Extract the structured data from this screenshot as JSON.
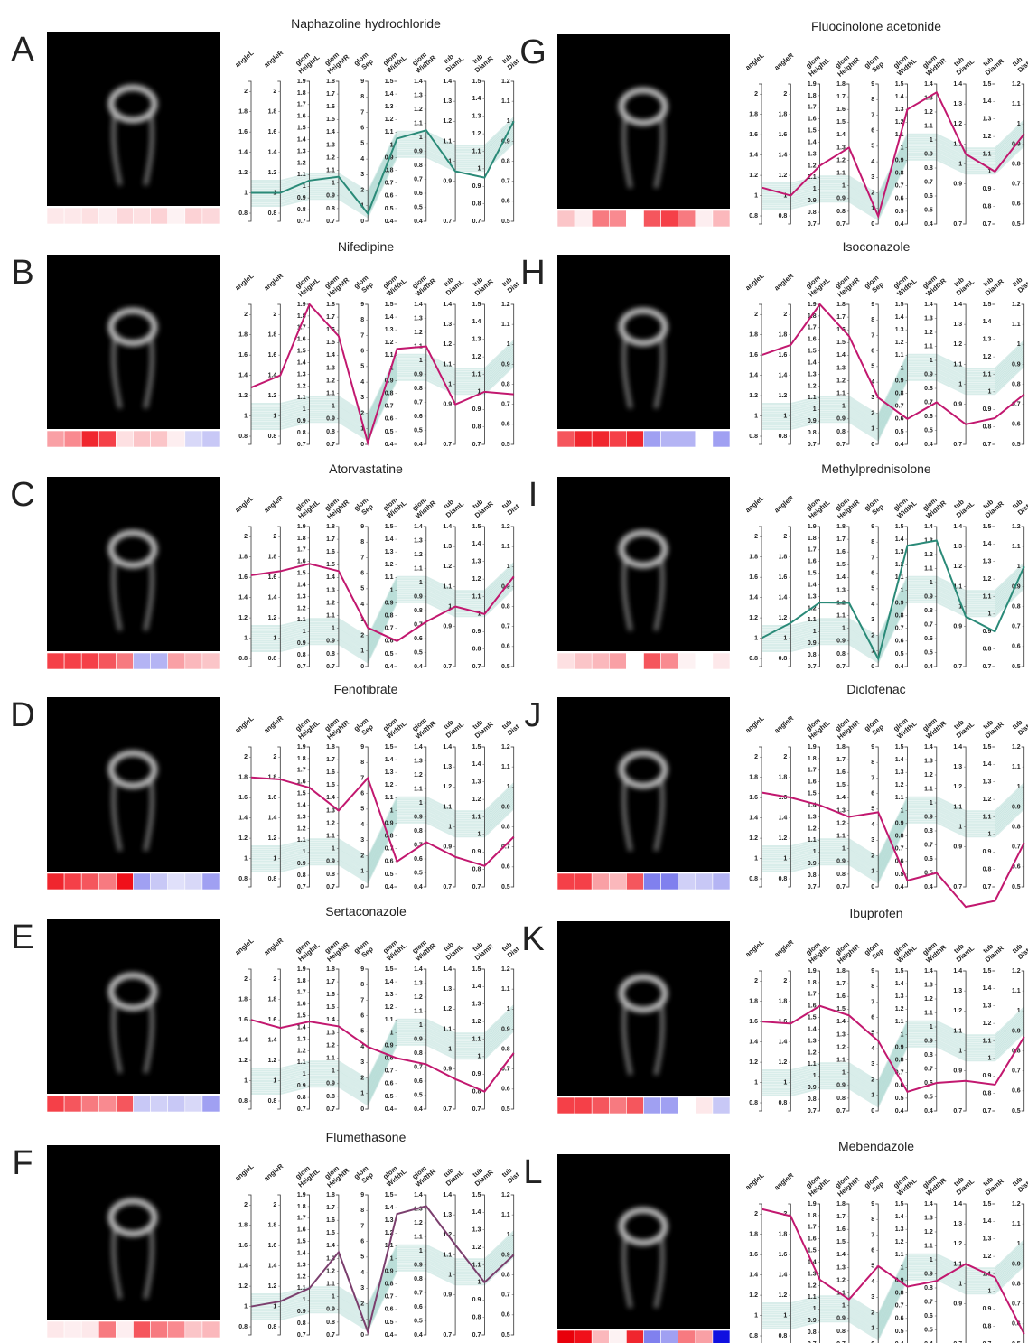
{
  "axes": [
    {
      "label": [
        "angleL"
      ],
      "ylim": [
        0.72,
        2.1
      ],
      "yticks": [
        0.8,
        1,
        1.2,
        1.4,
        1.6,
        1.8,
        2
      ]
    },
    {
      "label": [
        "angleR"
      ],
      "ylim": [
        0.72,
        2.1
      ],
      "yticks": [
        0.8,
        1,
        1.2,
        1.4,
        1.6,
        1.8,
        2
      ]
    },
    {
      "label": [
        "glom",
        "HeightL"
      ],
      "ylim": [
        0.7,
        1.9
      ],
      "yticks": [
        0.7,
        0.8,
        0.9,
        1,
        1.1,
        1.2,
        1.3,
        1.4,
        1.5,
        1.6,
        1.7,
        1.8,
        1.9
      ]
    },
    {
      "label": [
        "glom",
        "HeightR"
      ],
      "ylim": [
        0.7,
        1.8
      ],
      "yticks": [
        0.7,
        0.8,
        0.9,
        1,
        1.1,
        1.2,
        1.3,
        1.4,
        1.5,
        1.6,
        1.7,
        1.8
      ]
    },
    {
      "label": [
        "glom",
        "Sep"
      ],
      "ylim": [
        0,
        9
      ],
      "yticks": [
        0,
        1,
        2,
        3,
        4,
        5,
        6,
        7,
        8,
        9
      ]
    },
    {
      "label": [
        "glom",
        "WidthL"
      ],
      "ylim": [
        0.4,
        1.5
      ],
      "yticks": [
        0.4,
        0.5,
        0.6,
        0.7,
        0.8,
        0.9,
        1,
        1.1,
        1.2,
        1.3,
        1.4,
        1.5
      ]
    },
    {
      "label": [
        "glom",
        "WidthR"
      ],
      "ylim": [
        0.4,
        1.4
      ],
      "yticks": [
        0.4,
        0.5,
        0.6,
        0.7,
        0.8,
        0.9,
        1,
        1.1,
        1.2,
        1.3,
        1.4
      ]
    },
    {
      "label": [
        "tub",
        "DiamL"
      ],
      "ylim": [
        0.7,
        1.4
      ],
      "yticks": [
        0.7,
        0.9,
        1,
        1.1,
        1.2,
        1.3,
        1.4
      ]
    },
    {
      "label": [
        "tub",
        "DiamR"
      ],
      "ylim": [
        0.7,
        1.5
      ],
      "yticks": [
        0.7,
        0.8,
        0.9,
        1,
        1.1,
        1.2,
        1.3,
        1.4,
        1.5
      ]
    },
    {
      "label": [
        "tub",
        "Dist"
      ],
      "ylim": [
        0.5,
        1.2
      ],
      "yticks": [
        0.5,
        0.6,
        0.7,
        0.8,
        0.9,
        1,
        1.1,
        1.2
      ]
    }
  ],
  "chart_data": [
    {
      "type": "parallel",
      "panel": "A",
      "title": "Naphazoline hydrochloride",
      "color": "#2a8a78",
      "values": [
        1,
        1,
        1.05,
        1.05,
        0.5,
        1.05,
        1.05,
        0.95,
        0.95,
        1.0
      ],
      "heatmap_colors": [
        "#fde8ea",
        "#fde8ea",
        "#fde0e2",
        "#fdeef0",
        "#fcd8db",
        "#fde0e2",
        "#fcd2d5",
        "#fdf2f3",
        "#fcd2d5",
        "#fcd8db"
      ]
    },
    {
      "type": "parallel",
      "panel": "B",
      "title": "Nifedipine",
      "color": "#c2186f",
      "values": [
        1.28,
        1.4,
        1.9,
        1.55,
        0.1,
        1.15,
        1.1,
        0.9,
        1.0,
        0.75
      ],
      "heatmap_colors": [
        "#f9a0a5",
        "#f98a90",
        "#f0262e",
        "#f54048",
        "#fde0e2",
        "#fbc5c8",
        "#fbc5c8",
        "#fdeef0",
        "#d8d8f8",
        "#c8c8f6"
      ]
    },
    {
      "type": "parallel",
      "panel": "C",
      "title": "Atorvastatine",
      "color": "#c2186f",
      "values": [
        1.62,
        1.66,
        1.58,
        1.45,
        2.5,
        0.6,
        0.72,
        1.0,
        1.0,
        0.95
      ],
      "heatmap_colors": [
        "#f54048",
        "#f54048",
        "#f54048",
        "#f5565d",
        "#f77a80",
        "#b4b4f4",
        "#b4b4f4",
        "#f9a0a5",
        "#fbb8bc",
        "#fbc5c8"
      ]
    },
    {
      "type": "parallel",
      "panel": "D",
      "title": "Fenofibrate",
      "color": "#c2186f",
      "values": [
        1.8,
        1.78,
        1.55,
        1.3,
        7,
        0.6,
        0.72,
        0.85,
        0.82,
        0.75
      ],
      "heatmap_colors": [
        "#f0262e",
        "#f54048",
        "#f5565d",
        "#f77a80",
        "#f0101a",
        "#a0a0f2",
        "#c8c8f6",
        "#e0e0fa",
        "#d8d8f8",
        "#a0a0f2"
      ]
    },
    {
      "type": "parallel",
      "panel": "E",
      "title": "Sertaconazole",
      "color": "#c2186f",
      "values": [
        1.6,
        1.52,
        1.45,
        1.35,
        4,
        0.8,
        0.72,
        0.85,
        0.8,
        0.78
      ],
      "heatmap_colors": [
        "#f54048",
        "#f5565d",
        "#f77a80",
        "#f98a90",
        "#f5565d",
        "#c8c8f6",
        "#d0d0f7",
        "#c8c8f6",
        "#d8d8f8",
        "#a0a0f2"
      ]
    },
    {
      "type": "parallel",
      "panel": "F",
      "title": "Flumethasone",
      "color": "#7b3f6e",
      "values": [
        1,
        1.05,
        1.1,
        1.35,
        0.2,
        1.35,
        1.32,
        1.15,
        1.0,
        0.9
      ],
      "heatmap_colors": [
        "#fde8ea",
        "#fdeef0",
        "#fde8ea",
        "#f77a80",
        "#fdeef0",
        "#f5565d",
        "#f77a80",
        "#f98a90",
        "#fbc5c8",
        "#fbb8bc"
      ]
    },
    {
      "type": "parallel",
      "panel": "G",
      "title": "Fluocinolone acetonide",
      "color": "#c2186f",
      "values": [
        1.08,
        1.0,
        1.2,
        1.3,
        0.5,
        1.3,
        1.34,
        1.05,
        1.0,
        0.95
      ],
      "heatmap_colors": [
        "#fbc5c8",
        "#fdeef0",
        "#f77a80",
        "#f98a90",
        "#ffffff",
        "#f5565d",
        "#f54048",
        "#f77a80",
        "#fdeef0",
        "#fbb8bc"
      ]
    },
    {
      "type": "parallel",
      "panel": "H",
      "title": "Isoconazole",
      "color": "#c2186f",
      "values": [
        1.6,
        1.7,
        1.9,
        1.55,
        3,
        0.6,
        0.7,
        0.8,
        0.85,
        0.75
      ],
      "heatmap_colors": [
        "#f5565d",
        "#f0262e",
        "#f0262e",
        "#f54048",
        "#f0262e",
        "#a0a0f2",
        "#b4b4f4",
        "#b4b4f4",
        "#ffffff",
        "#a0a0f2"
      ]
    },
    {
      "type": "parallel",
      "panel": "I",
      "title": "Methylprednisolone",
      "color": "#2a8a78",
      "values": [
        1.0,
        1.15,
        1.25,
        1.2,
        0.5,
        1.35,
        1.3,
        0.95,
        0.9,
        1.0
      ],
      "heatmap_colors": [
        "#fde0e2",
        "#fbc5c8",
        "#fbb8bc",
        "#f9a0a5",
        "#ffffff",
        "#f5565d",
        "#f98a90",
        "#fdf2f3",
        "#ffffff",
        "#fde8ea"
      ]
    },
    {
      "type": "parallel",
      "panel": "J",
      "title": "Diclofenac",
      "color": "#c2186f",
      "values": [
        1.65,
        1.6,
        1.4,
        1.25,
        4.8,
        0.45,
        0.5,
        0.6,
        0.62,
        0.72
      ],
      "heatmap_colors": [
        "#f54048",
        "#f54048",
        "#f9a0a5",
        "#fbb8bc",
        "#f5565d",
        "#8080ee",
        "#8080ee",
        "#d0d0f7",
        "#c8c8f6",
        "#b4b4f4"
      ]
    },
    {
      "type": "parallel",
      "panel": "K",
      "title": "Ibuprofen",
      "color": "#c2186f",
      "values": [
        1.6,
        1.58,
        1.6,
        1.45,
        4.5,
        0.55,
        0.6,
        0.85,
        0.85,
        0.87
      ],
      "heatmap_colors": [
        "#f54048",
        "#f54048",
        "#f5565d",
        "#f77a80",
        "#f5565d",
        "#a0a0f2",
        "#a0a0f2",
        "#ffffff",
        "#fde8ea",
        "#c8c8f6"
      ]
    },
    {
      "type": "parallel",
      "panel": "L",
      "title": "Mebendazole",
      "color": "#c2186f",
      "values": [
        2.05,
        1.98,
        1.25,
        1.05,
        5,
        0.85,
        0.85,
        1.1,
        1.08,
        0.55
      ],
      "heatmap_colors": [
        "#e8000a",
        "#f0101a",
        "#fbb8bc",
        "#fdf2f3",
        "#f0262e",
        "#8080ee",
        "#a0a0f2",
        "#f77a80",
        "#f9a0a5",
        "#1010e0"
      ]
    }
  ]
}
